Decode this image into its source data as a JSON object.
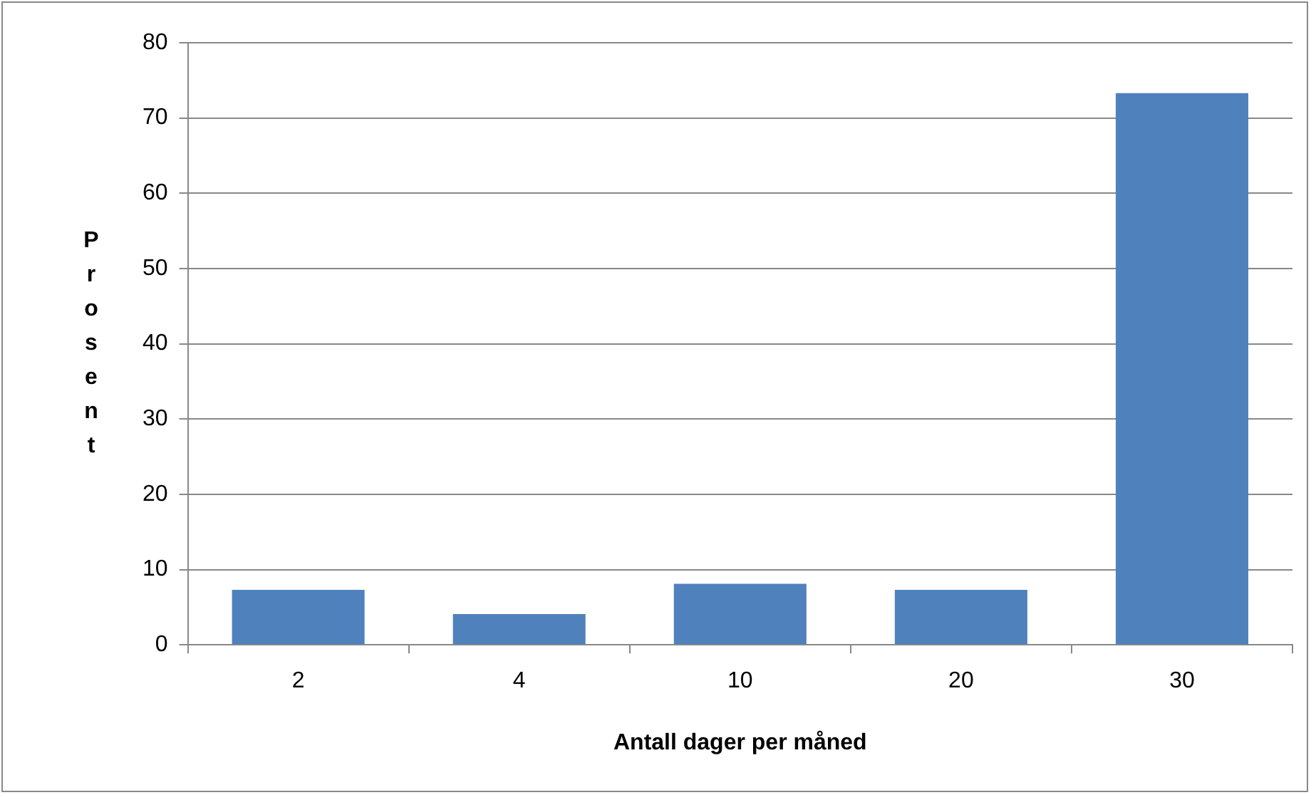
{
  "chart_data": {
    "type": "bar",
    "xlabel": "Antall dager per måned",
    "ylabel": "Prosent",
    "categories": [
      "2",
      "4",
      "10",
      "20",
      "30"
    ],
    "values": [
      7.3,
      4.1,
      8.1,
      7.3,
      73.3
    ],
    "color": "#4f81bd",
    "ylim": [
      0,
      80
    ],
    "yticks": [
      0,
      10,
      20,
      30,
      40,
      50,
      60,
      70,
      80
    ],
    "grid": "y",
    "legend": false
  }
}
